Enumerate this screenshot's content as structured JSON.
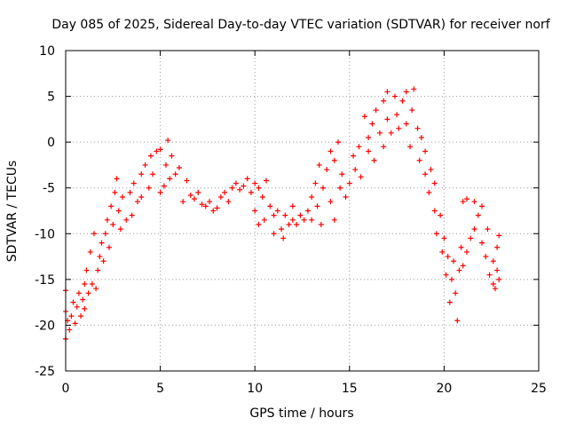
{
  "chart_data": {
    "type": "scatter",
    "title": "Day 085 of 2025, Sidereal Day-to-day VTEC variation (SDTVAR) for receiver norf",
    "xlabel": "GPS time / hours",
    "ylabel": "SDTVAR / TECUs",
    "xlim": [
      0,
      25
    ],
    "ylim": [
      -25,
      10
    ],
    "xticks": [
      "0",
      "5",
      "10",
      "15",
      "20",
      "25"
    ],
    "yticks": [
      "-25",
      "-20",
      "-15",
      "-10",
      "-5",
      "0",
      "5",
      "10"
    ],
    "grid": true,
    "marker": "plus",
    "series": [
      {
        "color": "#ff0000",
        "points": [
          [
            0.0,
            -16.2
          ],
          [
            0.0,
            -18.5
          ],
          [
            0.0,
            -21.5
          ],
          [
            0.1,
            -19.5
          ],
          [
            0.2,
            -20.5
          ],
          [
            0.3,
            -19.0
          ],
          [
            0.4,
            -17.5
          ],
          [
            0.5,
            -19.8
          ],
          [
            0.6,
            -18.0
          ],
          [
            0.7,
            -16.5
          ],
          [
            0.8,
            -19.0
          ],
          [
            0.9,
            -17.2
          ],
          [
            1.0,
            -15.5
          ],
          [
            1.0,
            -18.2
          ],
          [
            1.1,
            -14.0
          ],
          [
            1.2,
            -16.5
          ],
          [
            1.3,
            -12.0
          ],
          [
            1.4,
            -15.5
          ],
          [
            1.5,
            -10.0
          ],
          [
            1.6,
            -16.0
          ],
          [
            1.7,
            -14.0
          ],
          [
            1.8,
            -12.5
          ],
          [
            1.9,
            -11.0
          ],
          [
            2.0,
            -13.0
          ],
          [
            2.1,
            -10.0
          ],
          [
            2.2,
            -8.5
          ],
          [
            2.3,
            -11.5
          ],
          [
            2.4,
            -7.0
          ],
          [
            2.5,
            -9.0
          ],
          [
            2.6,
            -5.5
          ],
          [
            2.7,
            -4.0
          ],
          [
            2.8,
            -7.5
          ],
          [
            2.9,
            -9.5
          ],
          [
            3.0,
            -6.0
          ],
          [
            3.2,
            -8.5
          ],
          [
            3.4,
            -5.5
          ],
          [
            3.5,
            -8.0
          ],
          [
            3.6,
            -4.5
          ],
          [
            3.8,
            -6.5
          ],
          [
            4.0,
            -3.5
          ],
          [
            4.0,
            -6.0
          ],
          [
            4.2,
            -2.5
          ],
          [
            4.4,
            -5.0
          ],
          [
            4.5,
            -1.5
          ],
          [
            4.6,
            -3.5
          ],
          [
            4.8,
            -1.0
          ],
          [
            5.0,
            -0.8
          ],
          [
            5.0,
            -5.5
          ],
          [
            5.2,
            -4.8
          ],
          [
            5.3,
            -2.5
          ],
          [
            5.4,
            0.2
          ],
          [
            5.5,
            -4.0
          ],
          [
            5.6,
            -1.5
          ],
          [
            5.8,
            -3.5
          ],
          [
            6.0,
            -2.8
          ],
          [
            6.2,
            -6.5
          ],
          [
            6.4,
            -4.2
          ],
          [
            6.6,
            -5.8
          ],
          [
            6.8,
            -6.2
          ],
          [
            7.0,
            -5.5
          ],
          [
            7.2,
            -6.8
          ],
          [
            7.4,
            -7.0
          ],
          [
            7.6,
            -6.5
          ],
          [
            7.8,
            -7.5
          ],
          [
            8.0,
            -7.2
          ],
          [
            8.2,
            -6.0
          ],
          [
            8.4,
            -5.5
          ],
          [
            8.6,
            -6.5
          ],
          [
            8.8,
            -5.0
          ],
          [
            9.0,
            -4.5
          ],
          [
            9.2,
            -5.2
          ],
          [
            9.4,
            -4.8
          ],
          [
            9.6,
            -4.0
          ],
          [
            9.8,
            -5.5
          ],
          [
            10.0,
            -4.5
          ],
          [
            10.0,
            -7.5
          ],
          [
            10.2,
            -5.0
          ],
          [
            10.2,
            -9.0
          ],
          [
            10.4,
            -6.0
          ],
          [
            10.5,
            -8.5
          ],
          [
            10.6,
            -4.2
          ],
          [
            10.8,
            -7.0
          ],
          [
            11.0,
            -8.0
          ],
          [
            11.0,
            -10.0
          ],
          [
            11.2,
            -7.5
          ],
          [
            11.4,
            -9.5
          ],
          [
            11.5,
            -10.5
          ],
          [
            11.6,
            -8.0
          ],
          [
            11.8,
            -9.0
          ],
          [
            12.0,
            -8.5
          ],
          [
            12.0,
            -7.0
          ],
          [
            12.2,
            -9.0
          ],
          [
            12.4,
            -8.0
          ],
          [
            12.6,
            -8.5
          ],
          [
            12.8,
            -7.5
          ],
          [
            13.0,
            -6.0
          ],
          [
            13.0,
            -8.5
          ],
          [
            13.2,
            -4.5
          ],
          [
            13.3,
            -7.0
          ],
          [
            13.4,
            -2.5
          ],
          [
            13.5,
            -9.0
          ],
          [
            13.6,
            -5.0
          ],
          [
            13.8,
            -3.0
          ],
          [
            14.0,
            -1.0
          ],
          [
            14.0,
            -6.5
          ],
          [
            14.2,
            -2.0
          ],
          [
            14.2,
            -8.5
          ],
          [
            14.4,
            0.0
          ],
          [
            14.5,
            -5.0
          ],
          [
            14.6,
            -3.5
          ],
          [
            14.8,
            -6.0
          ],
          [
            15.0,
            -4.5
          ],
          [
            15.2,
            -1.5
          ],
          [
            15.3,
            -3.0
          ],
          [
            15.5,
            -0.5
          ],
          [
            15.6,
            -3.8
          ],
          [
            15.8,
            2.8
          ],
          [
            16.0,
            0.5
          ],
          [
            16.0,
            -1.0
          ],
          [
            16.2,
            2.0
          ],
          [
            16.3,
            -2.0
          ],
          [
            16.4,
            3.5
          ],
          [
            16.6,
            1.0
          ],
          [
            16.8,
            4.5
          ],
          [
            16.8,
            -0.5
          ],
          [
            17.0,
            5.5
          ],
          [
            17.0,
            2.5
          ],
          [
            17.2,
            1.0
          ],
          [
            17.4,
            5.0
          ],
          [
            17.5,
            3.0
          ],
          [
            17.6,
            1.5
          ],
          [
            17.8,
            4.5
          ],
          [
            18.0,
            2.0
          ],
          [
            18.0,
            5.5
          ],
          [
            18.2,
            -0.5
          ],
          [
            18.3,
            3.5
          ],
          [
            18.4,
            5.8
          ],
          [
            18.6,
            1.5
          ],
          [
            18.7,
            -2.0
          ],
          [
            18.8,
            0.5
          ],
          [
            19.0,
            -3.5
          ],
          [
            19.0,
            -1.0
          ],
          [
            19.2,
            -5.5
          ],
          [
            19.3,
            -3.0
          ],
          [
            19.5,
            -7.5
          ],
          [
            19.5,
            -4.5
          ],
          [
            19.6,
            -10.0
          ],
          [
            19.8,
            -8.0
          ],
          [
            19.9,
            -12.0
          ],
          [
            20.0,
            -10.5
          ],
          [
            20.1,
            -14.5
          ],
          [
            20.2,
            -12.5
          ],
          [
            20.3,
            -17.5
          ],
          [
            20.4,
            -15.0
          ],
          [
            20.5,
            -13.0
          ],
          [
            20.6,
            -16.5
          ],
          [
            20.7,
            -19.5
          ],
          [
            20.8,
            -14.0
          ],
          [
            20.9,
            -11.5
          ],
          [
            21.0,
            -13.5
          ],
          [
            21.0,
            -6.5
          ],
          [
            21.2,
            -12.0
          ],
          [
            21.2,
            -6.2
          ],
          [
            21.4,
            -10.5
          ],
          [
            21.6,
            -6.5
          ],
          [
            21.6,
            -9.5
          ],
          [
            21.8,
            -8.0
          ],
          [
            22.0,
            -7.0
          ],
          [
            22.0,
            -11.0
          ],
          [
            22.2,
            -12.5
          ],
          [
            22.3,
            -9.5
          ],
          [
            22.4,
            -14.5
          ],
          [
            22.6,
            -13.0
          ],
          [
            22.6,
            -15.5
          ],
          [
            22.7,
            -16.0
          ],
          [
            22.8,
            -14.0
          ],
          [
            22.8,
            -11.5
          ],
          [
            22.9,
            -10.2
          ],
          [
            22.9,
            -15.0
          ]
        ]
      }
    ]
  }
}
